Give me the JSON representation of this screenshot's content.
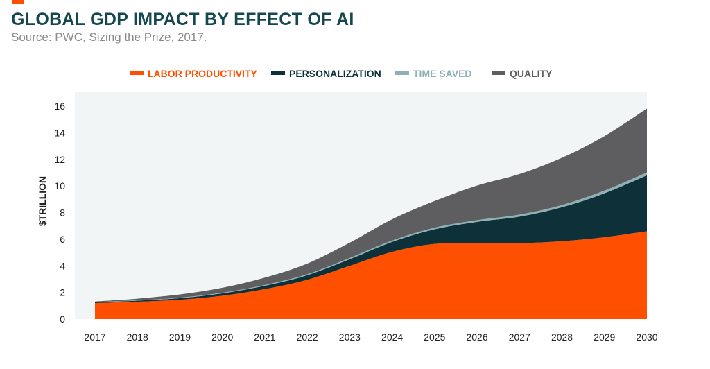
{
  "header": {
    "title": "GLOBAL GDP IMPACT BY EFFECT OF AI",
    "subtitle": "Source: PWC, Sizing the Prize, 2017."
  },
  "colors": {
    "accent": "#fe5000",
    "title": "#14474e",
    "plot_background": "#f1f5f6"
  },
  "chart_data": {
    "type": "area",
    "stacked": true,
    "title": "GLOBAL GDP IMPACT BY EFFECT OF AI",
    "subtitle": "Source: PWC, Sizing the Prize, 2017.",
    "xlabel": "",
    "ylabel": "$TRILLION",
    "x": [
      "2017",
      "2018",
      "2019",
      "2020",
      "2021",
      "2022",
      "2023",
      "2024",
      "2025",
      "2026",
      "2027",
      "2028",
      "2029",
      "2030"
    ],
    "yticks": [
      0,
      2,
      4,
      6,
      8,
      10,
      12,
      14,
      16
    ],
    "ylim": [
      0,
      16
    ],
    "legend_position": "top",
    "grid": false,
    "series": [
      {
        "name": "LABOR PRODUCTIVITY",
        "color": "#fe5000",
        "legend_color": "#fe5000",
        "values": [
          1.2,
          1.3,
          1.45,
          1.75,
          2.25,
          2.95,
          4.0,
          5.05,
          5.65,
          5.7,
          5.7,
          5.85,
          6.15,
          6.6
        ]
      },
      {
        "name": "PERSONALIZATION",
        "color": "#0d3039",
        "legend_color": "#0d3039",
        "values": [
          0.05,
          0.08,
          0.12,
          0.18,
          0.25,
          0.35,
          0.5,
          0.75,
          1.1,
          1.6,
          2.0,
          2.55,
          3.3,
          4.2
        ]
      },
      {
        "name": "TIME SAVED",
        "color": "#8fb0b4",
        "legend_color": "#8fb0b4",
        "values": [
          0.02,
          0.03,
          0.04,
          0.05,
          0.06,
          0.07,
          0.09,
          0.1,
          0.12,
          0.13,
          0.15,
          0.17,
          0.2,
          0.22
        ]
      },
      {
        "name": "QUALITY",
        "color": "#5e5e60",
        "legend_color": "#5e5e60",
        "values": [
          0.05,
          0.12,
          0.24,
          0.37,
          0.55,
          0.8,
          1.15,
          1.6,
          2.0,
          2.6,
          3.05,
          3.55,
          4.1,
          4.8
        ]
      }
    ]
  }
}
